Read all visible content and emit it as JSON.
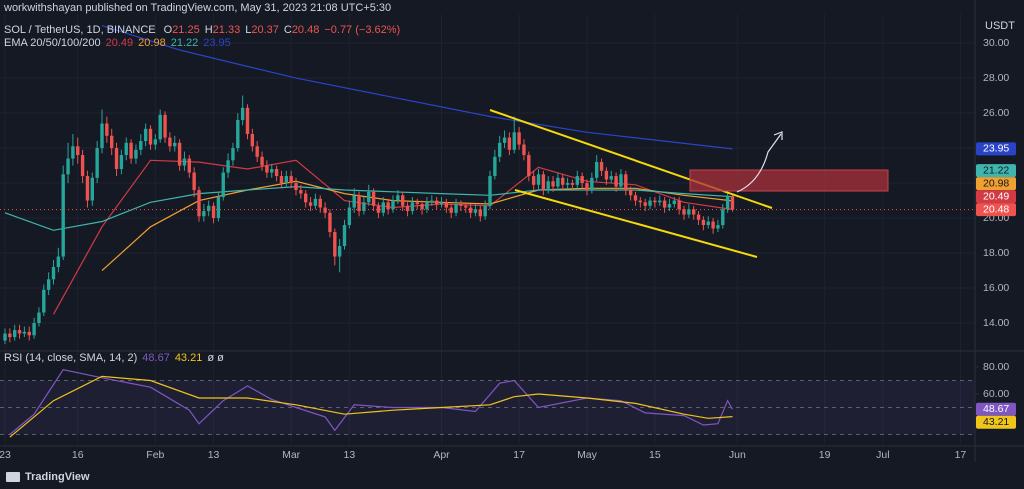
{
  "header": {
    "published": "workwithshayan published on TradingView.com, May 31, 2023 21:08 UTC+5:30"
  },
  "footer": {
    "brand": "TradingView"
  },
  "chart_data": [
    {
      "type": "candlestick",
      "title": "SOL / TetherUS, 1D, BINANCE",
      "ohlc_legend": [
        {
          "label": "O",
          "value": "21.25"
        },
        {
          "label": "H",
          "value": "21.33"
        },
        {
          "label": "L",
          "value": "20.37"
        },
        {
          "label": "C",
          "value": "20.48"
        }
      ],
      "change": "−0.77 (−3.62%)",
      "indicator": "EMA 20/50/100/200",
      "unit": "USDT",
      "up_color": "#26a69a",
      "down_color": "#ef5350",
      "price_label": "20.48",
      "grid": true,
      "xlim": [
        -1.03,
        200
      ],
      "xticks": [
        {
          "value": 0,
          "label": "23"
        },
        {
          "value": 15,
          "label": "16"
        },
        {
          "value": 31,
          "label": "Feb"
        },
        {
          "value": 43,
          "label": "13"
        },
        {
          "value": 59,
          "label": "Mar"
        },
        {
          "value": 71,
          "label": "13"
        },
        {
          "value": 90,
          "label": "Apr"
        },
        {
          "value": 106,
          "label": "17"
        },
        {
          "value": 120,
          "label": "May"
        },
        {
          "value": 134,
          "label": "15"
        },
        {
          "value": 151,
          "label": "Jun"
        },
        {
          "value": 169,
          "label": "19"
        },
        {
          "value": 181,
          "label": "Jul"
        },
        {
          "value": 197,
          "label": "17"
        }
      ],
      "ylim": [
        12.46,
        31.66
      ],
      "yticks": [
        {
          "value": 14,
          "label": "14.00"
        },
        {
          "value": 16,
          "label": "16.00"
        },
        {
          "value": 18,
          "label": "18.00"
        },
        {
          "value": 20,
          "label": "20.00"
        },
        {
          "value": 22,
          "label": "22.00"
        },
        {
          "value": 24,
          "label": "24.00"
        },
        {
          "value": 26,
          "label": "26.00"
        },
        {
          "value": 28,
          "label": "28.00"
        },
        {
          "value": 30,
          "label": "30.00"
        }
      ],
      "open": [
        13.0,
        13.4,
        13.2,
        13.6,
        13.4,
        13.5,
        13.3,
        14.0,
        14.6,
        15.9,
        16.5,
        17.2,
        17.8,
        22.5,
        23.4,
        24.1,
        23.6,
        22.4,
        21.0,
        22.3,
        24.0,
        25.4,
        24.7,
        24.0,
        22.8,
        23.6,
        24.3,
        23.4,
        23.9,
        24.4,
        25.1,
        24.2,
        24.5,
        25.9,
        24.6,
        24.1,
        24.3,
        23.0,
        23.4,
        22.6,
        21.6,
        20.1,
        20.4,
        20.7,
        20.0,
        21.2,
        22.6,
        23.3,
        24.0,
        25.6,
        26.3,
        24.8,
        24.1,
        23.5,
        23.0,
        22.6,
        22.8,
        22.4,
        22.0,
        22.4,
        22.0,
        21.6,
        21.4,
        20.9,
        20.7,
        21.1,
        20.6,
        20.3,
        19.2,
        17.8,
        18.4,
        19.6,
        20.6,
        21.3,
        20.4,
        20.9,
        21.5,
        20.7,
        20.3,
        20.9,
        20.5,
        21.0,
        21.3,
        20.7,
        20.4,
        20.9,
        20.8,
        20.5,
        20.9,
        21.0,
        20.8,
        20.9,
        20.6,
        20.3,
        20.8,
        20.7,
        20.6,
        20.3,
        20.5,
        20.1,
        20.7,
        22.4,
        23.5,
        24.3,
        24.6,
        23.9,
        24.9,
        24.2,
        23.6,
        22.4,
        21.9,
        22.5,
        21.6,
        22.1,
        21.8,
        22.3,
        21.9,
        22.0,
        21.9,
        22.4,
        22.0,
        21.6,
        22.3,
        23.2,
        22.7,
        22.2,
        22.4,
        21.8,
        22.5,
        21.6,
        21.3,
        21.0,
        20.9,
        20.7,
        21.0,
        20.9,
        21.0,
        20.6,
        20.8,
        21.0,
        20.5,
        20.2,
        20.5,
        20.2,
        19.9,
        19.6,
        19.8,
        19.4,
        19.6,
        20.5,
        21.25
      ],
      "high": [
        13.7,
        13.7,
        13.9,
        13.9,
        13.8,
        13.8,
        14.3,
        14.9,
        16.2,
        16.9,
        17.6,
        18.3,
        23.0,
        24.3,
        24.8,
        24.6,
        23.9,
        22.7,
        22.6,
        24.4,
        26.2,
        25.8,
        25.1,
        24.3,
        23.9,
        24.6,
        24.5,
        24.2,
        24.8,
        25.4,
        25.3,
        24.8,
        26.2,
        26.1,
        24.9,
        24.7,
        24.5,
        23.8,
        23.6,
        22.9,
        21.8,
        20.8,
        21.0,
        20.9,
        21.5,
        22.9,
        23.7,
        24.3,
        26.0,
        27.0,
        26.5,
        25.1,
        24.4,
        23.8,
        23.3,
        23.1,
        23.0,
        22.7,
        22.7,
        22.7,
        22.3,
        21.9,
        21.6,
        21.2,
        21.4,
        21.3,
        20.9,
        20.5,
        19.4,
        18.8,
        19.9,
        21.0,
        21.7,
        21.5,
        21.2,
        21.9,
        21.7,
        20.9,
        21.2,
        21.1,
        21.3,
        21.6,
        21.5,
        20.9,
        21.2,
        21.1,
        21.0,
        21.2,
        21.3,
        21.2,
        21.2,
        21.1,
        20.8,
        21.1,
        21.0,
        20.9,
        20.8,
        20.8,
        20.7,
        21.0,
        22.7,
        23.9,
        24.7,
        25.0,
        24.9,
        25.8,
        25.2,
        24.5,
        23.8,
        22.7,
        22.8,
        22.7,
        22.4,
        22.4,
        22.6,
        22.5,
        22.3,
        22.2,
        22.7,
        22.6,
        22.2,
        22.6,
        23.6,
        23.4,
        22.9,
        22.7,
        22.6,
        22.8,
        22.7,
        21.8,
        21.5,
        21.2,
        21.1,
        21.2,
        21.2,
        21.3,
        21.2,
        21.1,
        21.2,
        21.2,
        20.7,
        20.8,
        20.7,
        20.4,
        20.1,
        20.1,
        20.0,
        19.9,
        20.8,
        21.5,
        21.33
      ],
      "low": [
        12.8,
        12.9,
        13.0,
        13.1,
        13.2,
        13.0,
        13.1,
        13.8,
        14.4,
        15.6,
        16.2,
        16.9,
        17.6,
        22.0,
        23.0,
        23.1,
        22.0,
        20.6,
        20.7,
        22.0,
        23.7,
        24.3,
        23.6,
        22.4,
        22.5,
        23.3,
        23.1,
        23.1,
        23.6,
        24.1,
        23.9,
        23.9,
        24.3,
        24.3,
        23.8,
        23.8,
        22.7,
        22.7,
        22.3,
        21.2,
        19.8,
        19.8,
        20.1,
        19.7,
        19.8,
        21.0,
        22.3,
        23.0,
        23.8,
        25.3,
        24.5,
        23.8,
        23.2,
        22.7,
        22.3,
        22.3,
        22.1,
        21.7,
        21.8,
        21.7,
        21.3,
        21.1,
        20.6,
        20.4,
        20.5,
        20.3,
        20.0,
        18.9,
        17.3,
        16.9,
        18.2,
        19.4,
        20.3,
        20.1,
        20.2,
        20.7,
        20.4,
        20.0,
        20.1,
        20.2,
        20.3,
        20.8,
        20.4,
        20.1,
        20.2,
        20.5,
        20.2,
        20.3,
        20.7,
        20.5,
        20.6,
        20.3,
        20.0,
        20.1,
        20.4,
        20.3,
        20.0,
        20.1,
        19.8,
        19.9,
        20.5,
        22.2,
        23.2,
        24.0,
        23.6,
        23.7,
        23.9,
        23.3,
        22.1,
        21.6,
        21.6,
        21.3,
        21.4,
        21.5,
        21.6,
        21.6,
        21.7,
        21.6,
        21.7,
        21.7,
        21.3,
        21.4,
        22.1,
        22.4,
        21.9,
        22.0,
        21.5,
        21.6,
        21.3,
        21.0,
        20.7,
        20.6,
        20.4,
        20.5,
        20.6,
        20.7,
        20.3,
        20.4,
        20.6,
        20.2,
        19.9,
        20.0,
        19.9,
        19.6,
        19.3,
        19.4,
        19.1,
        19.2,
        19.4,
        20.3,
        20.37
      ],
      "close": [
        13.4,
        13.2,
        13.6,
        13.4,
        13.5,
        13.3,
        14.0,
        14.6,
        15.9,
        16.5,
        17.2,
        17.8,
        22.5,
        23.4,
        24.1,
        23.6,
        22.4,
        21.0,
        22.3,
        24.0,
        25.4,
        24.7,
        24.0,
        22.8,
        23.6,
        24.3,
        23.4,
        23.9,
        24.4,
        25.1,
        24.2,
        24.5,
        25.9,
        24.6,
        24.1,
        24.3,
        23.0,
        23.4,
        22.6,
        21.6,
        20.1,
        20.4,
        20.7,
        20.0,
        21.2,
        22.6,
        23.3,
        24.0,
        25.6,
        26.3,
        24.8,
        24.1,
        23.5,
        23.0,
        22.6,
        22.8,
        22.4,
        22.0,
        22.4,
        22.0,
        21.6,
        21.4,
        20.9,
        20.7,
        21.1,
        20.6,
        20.3,
        19.2,
        17.8,
        18.4,
        19.6,
        20.6,
        21.3,
        20.4,
        20.9,
        21.5,
        20.7,
        20.3,
        20.9,
        20.5,
        21.0,
        21.3,
        20.7,
        20.4,
        20.9,
        20.8,
        20.5,
        20.9,
        21.0,
        20.8,
        20.9,
        20.6,
        20.3,
        20.8,
        20.7,
        20.6,
        20.3,
        20.5,
        20.1,
        20.7,
        22.4,
        23.5,
        24.3,
        24.6,
        23.9,
        24.9,
        24.2,
        23.6,
        22.4,
        21.9,
        22.5,
        21.6,
        22.1,
        21.8,
        22.3,
        21.9,
        22.0,
        21.9,
        22.4,
        22.0,
        21.6,
        22.3,
        23.2,
        22.7,
        22.2,
        22.4,
        21.8,
        22.5,
        21.6,
        21.3,
        21.0,
        20.9,
        20.7,
        21.0,
        20.9,
        21.0,
        20.6,
        20.8,
        21.0,
        20.5,
        20.2,
        20.5,
        20.2,
        19.9,
        19.6,
        19.8,
        19.4,
        19.6,
        20.5,
        21.25,
        20.48
      ],
      "series": [
        {
          "color": "#d23a44",
          "last_label": "20.49",
          "x": [
            10,
            20,
            30,
            40,
            50,
            60,
            70,
            80,
            90,
            100,
            110,
            120,
            130,
            140,
            150
          ],
          "values": [
            14.5,
            19.5,
            23.3,
            23.2,
            22.8,
            23.3,
            21.0,
            20.6,
            20.8,
            20.7,
            22.9,
            22.1,
            21.9,
            20.9,
            20.49
          ]
        },
        {
          "color": "#f0a030",
          "last_label": "20.98",
          "x": [
            20,
            30,
            40,
            50,
            60,
            70,
            80,
            90,
            100,
            110,
            120,
            130,
            140,
            150
          ],
          "values": [
            17.0,
            19.5,
            21.0,
            21.6,
            22.1,
            21.4,
            21.0,
            20.9,
            20.8,
            21.6,
            21.7,
            21.7,
            21.3,
            20.98
          ]
        },
        {
          "color": "#3fb6ad",
          "last_label": "21.22",
          "x": [
            0,
            10,
            20,
            30,
            40,
            50,
            60,
            70,
            80,
            90,
            100,
            110,
            120,
            130,
            140,
            150
          ],
          "values": [
            20.3,
            19.3,
            19.8,
            20.9,
            21.4,
            21.6,
            21.8,
            21.6,
            21.5,
            21.4,
            21.3,
            21.6,
            21.6,
            21.6,
            21.4,
            21.22
          ]
        },
        {
          "color": "#2a44c8",
          "last_label": "23.95",
          "x": [
            20,
            36,
            60,
            80,
            100,
            120,
            150
          ],
          "values": [
            31.0,
            29.6,
            28.0,
            26.9,
            25.8,
            24.9,
            23.95
          ]
        }
      ]
    },
    {
      "type": "line",
      "title": "RSI (14, close, SMA, 14, 2)",
      "suffix": "ø ø",
      "xlim": [
        -1.03,
        200
      ],
      "ylim": [
        22.2,
        91.1
      ],
      "yticks": [
        {
          "value": 60,
          "label": "60.00"
        },
        {
          "value": 80,
          "label": "80.00"
        }
      ],
      "band": [
        30,
        70
      ],
      "midline": 50,
      "band_color": "#7e57c2",
      "series": [
        {
          "color": "#7e57c2",
          "last_label": "48.67",
          "x": [
            1,
            6,
            12,
            20,
            30,
            38,
            40,
            45,
            50,
            55,
            60,
            66,
            68,
            72,
            80,
            90,
            97,
            102,
            105,
            110,
            120,
            127,
            132,
            140,
            144,
            147,
            149,
            150
          ],
          "values": [
            30,
            45,
            78,
            72,
            65,
            48,
            38,
            55,
            66,
            56,
            50,
            43,
            33,
            52,
            50,
            50,
            47,
            68,
            70,
            50,
            57,
            55,
            46,
            44,
            37,
            38,
            55,
            48.67
          ]
        },
        {
          "color": "#f0c419",
          "last_label": "43.21",
          "x": [
            1,
            10,
            20,
            30,
            40,
            50,
            60,
            70,
            80,
            90,
            100,
            105,
            110,
            120,
            130,
            140,
            145,
            150
          ],
          "values": [
            28,
            55,
            73,
            70,
            57,
            57,
            52,
            45,
            48,
            50,
            52,
            58,
            60,
            57,
            53,
            45,
            42,
            43.21
          ]
        }
      ]
    }
  ]
}
